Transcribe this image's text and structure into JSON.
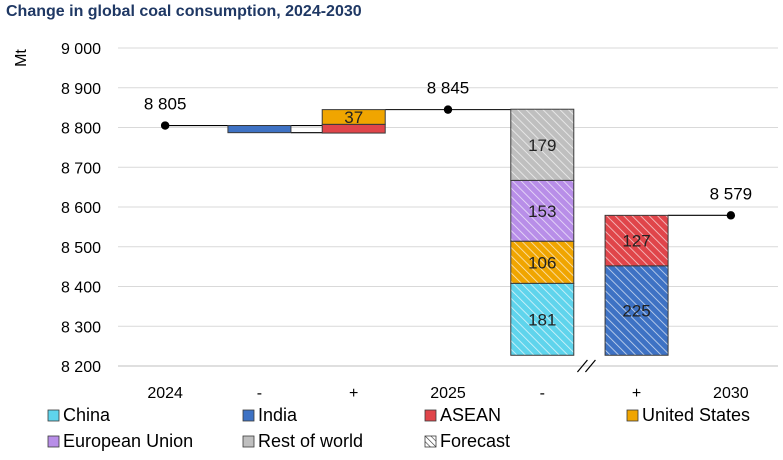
{
  "chart_data": {
    "type": "bar",
    "subtype": "waterfall",
    "title": "Change in global coal consumption, 2024-2030",
    "ylabel": "Mt",
    "xlabel": "",
    "ylim": [
      8200,
      9000
    ],
    "y_ticks": [
      "8 200",
      "8 300",
      "8 400",
      "8 500",
      "8 600",
      "8 700",
      "8 800",
      "8 900",
      "9 000"
    ],
    "y_tick_values": [
      8200,
      8300,
      8400,
      8500,
      8600,
      8700,
      8800,
      8900,
      9000
    ],
    "categories": [
      "2024",
      "-",
      "+",
      "2025",
      "-",
      "+",
      "2030"
    ],
    "totals": [
      {
        "category_index": 0,
        "value": 8805,
        "label": "8 805"
      },
      {
        "category_index": 3,
        "value": 8845,
        "label": "8 845"
      },
      {
        "category_index": 6,
        "value": 8579,
        "label": "8 579"
      }
    ],
    "segments": [
      {
        "category_index": 1,
        "series": "India",
        "bottom": 8787,
        "top": 8805,
        "value": 18,
        "label": ""
      },
      {
        "category_index": 2,
        "series": "ASEAN",
        "bottom": 8786,
        "top": 8808,
        "value": 22,
        "label": ""
      },
      {
        "category_index": 2,
        "series": "United States",
        "bottom": 8808,
        "top": 8845,
        "value": 37,
        "label": "37"
      },
      {
        "category_index": 4,
        "series": "China",
        "bottom": 8227,
        "top": 8408,
        "value": 181,
        "label": "181",
        "hatched": true
      },
      {
        "category_index": 4,
        "series": "United States",
        "bottom": 8408,
        "top": 8514,
        "value": 106,
        "label": "106",
        "hatched": true
      },
      {
        "category_index": 4,
        "series": "European Union",
        "bottom": 8514,
        "top": 8667,
        "value": 153,
        "label": "153",
        "hatched": true
      },
      {
        "category_index": 4,
        "series": "Rest of world",
        "bottom": 8667,
        "top": 8846,
        "value": 179,
        "label": "179",
        "hatched": true
      },
      {
        "category_index": 5,
        "series": "India",
        "bottom": 8227,
        "top": 8452,
        "value": 225,
        "label": "225",
        "hatched": true
      },
      {
        "category_index": 5,
        "series": "ASEAN",
        "bottom": 8452,
        "top": 8579,
        "value": 127,
        "label": "127",
        "hatched": true
      }
    ],
    "connectors": [
      {
        "from_category_index": 0,
        "to_category_index": 2,
        "value": 8805
      },
      {
        "from_category_index": 1,
        "to_category_index": 2,
        "value": 8787
      },
      {
        "from_category_index": 2,
        "to_category_index": 4,
        "value": 8845
      },
      {
        "from_category_index": 5,
        "to_category_index": 6,
        "value": 8579
      }
    ],
    "axis_break_after_category_index": 4,
    "legend": [
      {
        "name": "China",
        "color": "#5fd4ec",
        "hatched": false
      },
      {
        "name": "India",
        "color": "#3e72c4",
        "hatched": false
      },
      {
        "name": "ASEAN",
        "color": "#e0454a",
        "hatched": false
      },
      {
        "name": "United States",
        "color": "#f0a500",
        "hatched": false
      },
      {
        "name": "European Union",
        "color": "#b88ee8",
        "hatched": false
      },
      {
        "name": "Rest of world",
        "color": "#bfbfbf",
        "hatched": false
      },
      {
        "name": "Forecast",
        "color": "#ffffff",
        "hatched": true
      }
    ],
    "legend_position": "bottom",
    "grid": true
  }
}
